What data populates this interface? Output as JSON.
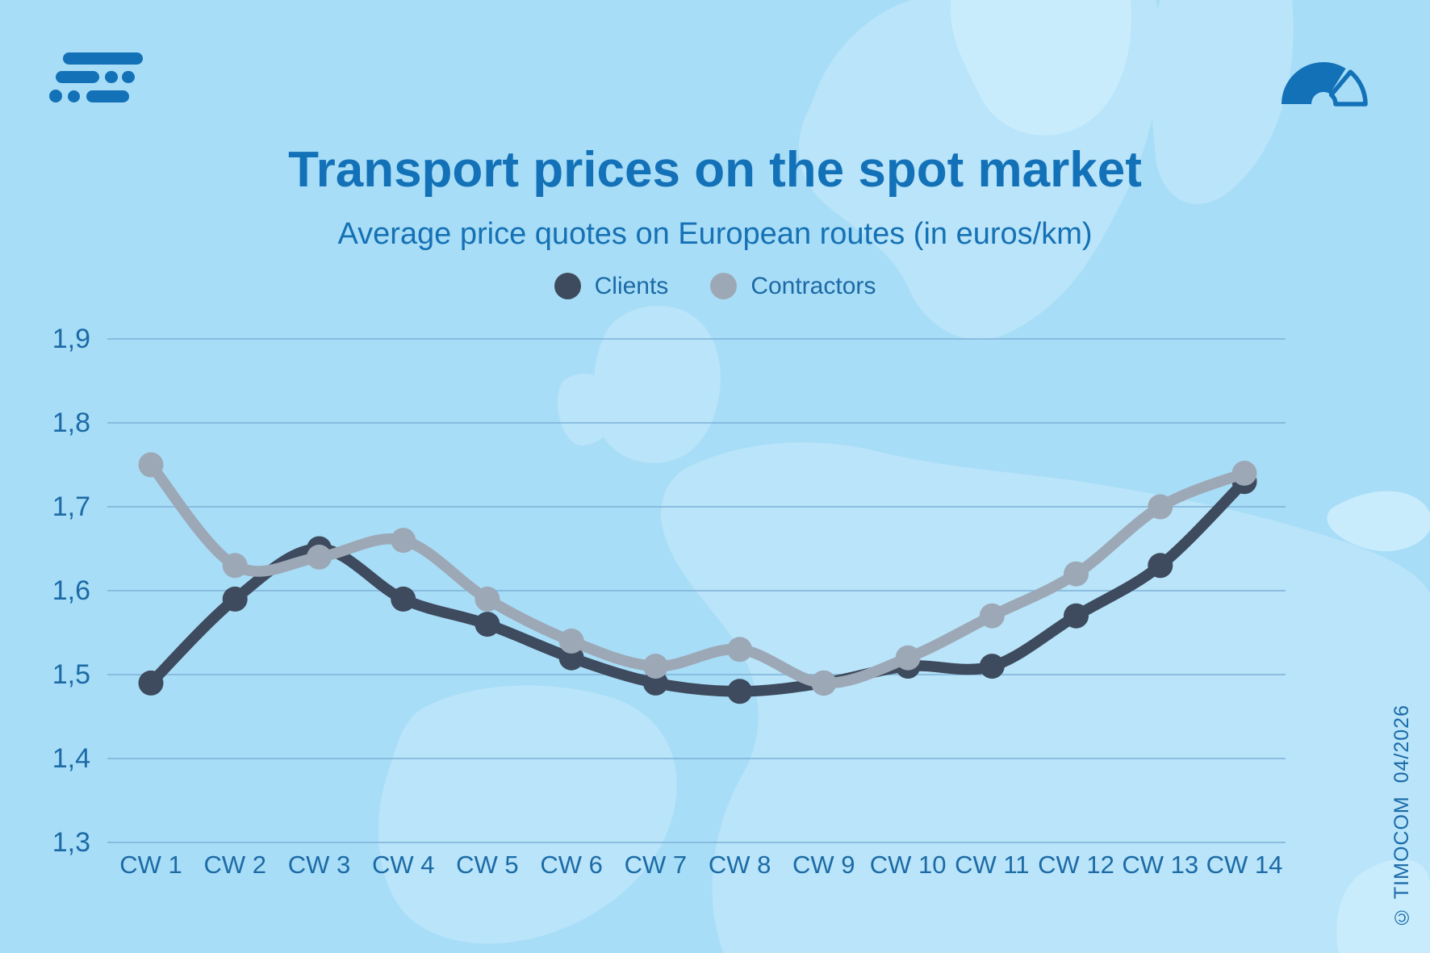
{
  "header": {
    "title": "Transport prices on the spot market",
    "subtitle": "Average price quotes on European routes (in euros/km)"
  },
  "legend": [
    {
      "label": "Clients",
      "color": "#3e4a5d"
    },
    {
      "label": "Contractors",
      "color": "#9da8b6"
    }
  ],
  "footer": {
    "copyright": "© TIMOCOM  04/2026"
  },
  "icons": {
    "logo": "timocom-logo",
    "gauge": "speedometer-gauge-icon"
  },
  "colors": {
    "background": "#a8ddf7",
    "map": "#b9e4f9",
    "map_light": "#c8ecfc",
    "accent_blue": "#1371b8",
    "axis_text": "#1c6ba6",
    "gridline": "#7eb2d7",
    "clients": "#3e4a5d",
    "contractors": "#9da8b6"
  },
  "chart_data": {
    "type": "line",
    "title": "Transport prices on the spot market",
    "subtitle": "Average price quotes on European routes (in euros/km)",
    "xlabel": "",
    "ylabel": "euros/km",
    "categories": [
      "CW 1",
      "CW 2",
      "CW 3",
      "CW 4",
      "CW 5",
      "CW 6",
      "CW 7",
      "CW 8",
      "CW 9",
      "CW 10",
      "CW 11",
      "CW 12",
      "CW 13",
      "CW 14"
    ],
    "series": [
      {
        "name": "Clients",
        "color": "#3e4a5d",
        "values": [
          1.49,
          1.59,
          1.65,
          1.59,
          1.56,
          1.52,
          1.49,
          1.48,
          1.49,
          1.51,
          1.51,
          1.57,
          1.63,
          1.73
        ]
      },
      {
        "name": "Contractors",
        "color": "#9da8b6",
        "values": [
          1.75,
          1.63,
          1.64,
          1.66,
          1.59,
          1.54,
          1.51,
          1.53,
          1.49,
          1.52,
          1.57,
          1.62,
          1.7,
          1.74
        ]
      }
    ],
    "ylim": [
      1.3,
      1.9
    ],
    "yticks": [
      1.9,
      1.8,
      1.7,
      1.6,
      1.5,
      1.4,
      1.3
    ],
    "ytick_labels": [
      "1,9",
      "1,8",
      "1,7",
      "1,6",
      "1,5",
      "1,4",
      "1,3"
    ],
    "grid": true,
    "legend_position": "top"
  }
}
